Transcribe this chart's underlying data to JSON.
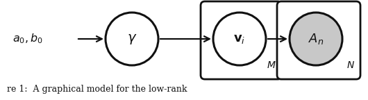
{
  "text_a0b0": "$a_0, b_0$",
  "text_gamma": "$\\gamma$",
  "text_vi": "$\\mathbf{v}_i$",
  "text_An": "$A_n$",
  "text_M": "$M$",
  "text_N": "$N$",
  "caption": "re 1:  A graphical model for the low-rank",
  "bg_color": "#ffffff",
  "node_edge_color": "#111111",
  "node_fill_white": "#ffffff",
  "node_fill_gray": "#c8c8c8",
  "arrow_color": "#111111",
  "plate_fill": "#ffffff",
  "figsize": [
    5.3,
    1.44
  ],
  "dpi": 100,
  "lw_circle": 2.2,
  "lw_plate": 2.0,
  "lw_arrow": 1.6
}
